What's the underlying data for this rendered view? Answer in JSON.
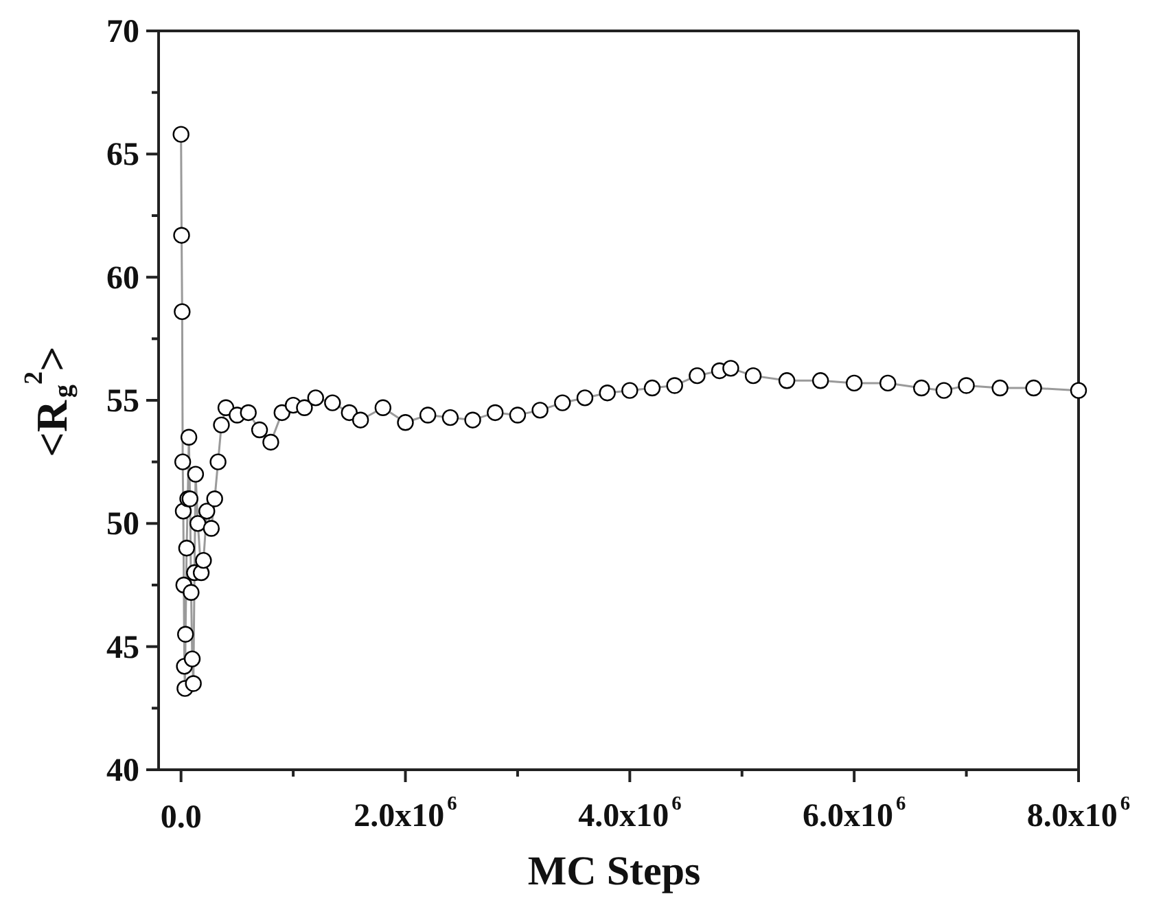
{
  "chart_data": {
    "type": "line",
    "xlabel": "MC Steps",
    "ylabel": "<R$_{g}$$^{2}$>",
    "xlim": [
      -200000,
      8000000
    ],
    "ylim": [
      40,
      70
    ],
    "xticks": [
      {
        "value": 0,
        "label": "0.0"
      },
      {
        "value": 1000000,
        "label": null
      },
      {
        "value": 2000000,
        "label": "2.0x10$^{6}$"
      },
      {
        "value": 3000000,
        "label": null
      },
      {
        "value": 4000000,
        "label": "4.0x10$^{6}$"
      },
      {
        "value": 5000000,
        "label": null
      },
      {
        "value": 6000000,
        "label": "6.0x10$^{6}$"
      },
      {
        "value": 7000000,
        "label": null
      },
      {
        "value": 8000000,
        "label": "8.0x10$^{6}$"
      }
    ],
    "yticks": [
      {
        "value": 40,
        "label": "40"
      },
      {
        "value": 42.5,
        "label": null
      },
      {
        "value": 45,
        "label": "45"
      },
      {
        "value": 47.5,
        "label": null
      },
      {
        "value": 50,
        "label": "50"
      },
      {
        "value": 52.5,
        "label": null
      },
      {
        "value": 55,
        "label": "55"
      },
      {
        "value": 57.5,
        "label": null
      },
      {
        "value": 60,
        "label": "60"
      },
      {
        "value": 62.5,
        "label": null
      },
      {
        "value": 65,
        "label": "65"
      },
      {
        "value": 67.5,
        "label": null
      },
      {
        "value": 70,
        "label": "70"
      }
    ],
    "grid": false,
    "marker": "circle",
    "line_style": "solid",
    "series": [
      {
        "color": "#000000",
        "x": [
          0,
          5000,
          10000,
          15000,
          20000,
          25000,
          30000,
          35000,
          40000,
          50000,
          60000,
          70000,
          80000,
          90000,
          100000,
          110000,
          120000,
          130000,
          150000,
          180000,
          200000,
          230000,
          270000,
          300000,
          330000,
          360000,
          400000,
          500000,
          600000,
          700000,
          800000,
          900000,
          1000000,
          1100000,
          1200000,
          1350000,
          1500000,
          1600000,
          1800000,
          2000000,
          2200000,
          2400000,
          2600000,
          2800000,
          3000000,
          3200000,
          3400000,
          3600000,
          3800000,
          4000000,
          4200000,
          4400000,
          4600000,
          4800000,
          4900000,
          5100000,
          5400000,
          5700000,
          6000000,
          6300000,
          6600000,
          6800000,
          7000000,
          7300000,
          7600000,
          8000000
        ],
        "values": [
          65.8,
          61.7,
          58.6,
          52.5,
          50.5,
          47.5,
          44.2,
          43.3,
          45.5,
          49,
          51,
          53.5,
          51,
          47.2,
          44.5,
          43.5,
          48,
          52,
          50,
          48,
          48.5,
          50.5,
          49.8,
          51,
          52.5,
          54,
          54.7,
          54.4,
          54.5,
          53.8,
          53.3,
          54.5,
          54.8,
          54.7,
          55.1,
          54.9,
          54.5,
          54.2,
          54.7,
          54.1,
          54.4,
          54.3,
          54.2,
          54.5,
          54.4,
          54.6,
          54.9,
          55.1,
          55.3,
          55.4,
          55.5,
          55.6,
          56.0,
          56.2,
          56.3,
          56.0,
          55.8,
          55.8,
          55.7,
          55.7,
          55.5,
          55.4,
          55.6,
          55.5,
          55.5,
          55.4
        ]
      }
    ]
  }
}
